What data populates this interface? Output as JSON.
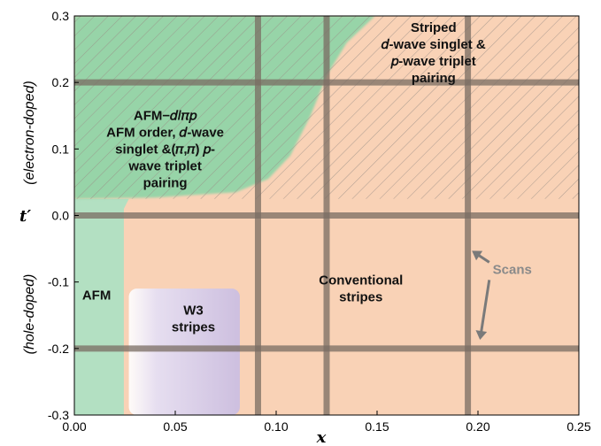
{
  "chart_data": {
    "type": "phase-diagram",
    "xlabel": "x",
    "ylabel_symbol": "t′",
    "ylabel_upper": "(electron-doped)",
    "ylabel_lower": "(hole-doped)",
    "xlim": [
      0.0,
      0.25
    ],
    "ylim": [
      -0.3,
      0.3
    ],
    "xticks": [
      0.0,
      0.05,
      0.1,
      0.15,
      0.2,
      0.25
    ],
    "xtick_labels": [
      "0.00",
      "0.05",
      "0.10",
      "0.15",
      "0.20",
      "0.25"
    ],
    "yticks": [
      -0.3,
      -0.2,
      -0.1,
      0.0,
      0.1,
      0.2,
      0.3
    ],
    "ytick_labels": [
      "-0.3",
      "-0.2",
      "-0.1",
      "0.0",
      "0.1",
      "0.2",
      "0.3"
    ],
    "scan_lines": {
      "x": [
        0.091,
        0.125,
        0.195
      ],
      "y": [
        -0.2,
        0.0,
        0.2
      ]
    },
    "regions": [
      {
        "id": "afm",
        "lines": [
          "AFM"
        ],
        "label_at": [
          0.011,
          -0.12
        ],
        "color": "#b3e0c2",
        "boundary": [
          [
            0.0,
            -0.3
          ],
          [
            0.0245,
            -0.3
          ],
          [
            0.0245,
            0.01
          ],
          [
            0.027,
            0.025
          ],
          [
            0.0,
            0.025
          ]
        ]
      },
      {
        "id": "afm-d-pi-p",
        "lines": [
          "AFM−𝑑/𝜋𝑝",
          "AFM order, 𝑑-wave",
          "singlet &(𝜋,𝜋) 𝑝-",
          "wave triplet",
          "pairing"
        ],
        "label_at": [
          0.045,
          0.1
        ],
        "color": "#97d4a8",
        "boundary": [
          [
            0.0,
            0.3
          ],
          [
            0.149,
            0.3
          ],
          [
            0.135,
            0.26
          ],
          [
            0.125,
            0.21
          ],
          [
            0.117,
            0.15
          ],
          [
            0.107,
            0.09
          ],
          [
            0.096,
            0.055
          ],
          [
            0.08,
            0.035
          ],
          [
            0.04,
            0.027
          ],
          [
            0.0,
            0.025
          ]
        ]
      },
      {
        "id": "striped",
        "lines": [
          "Striped",
          "𝑑-wave singlet &",
          "𝑝-wave triplet",
          "pairing"
        ],
        "label_at": [
          0.178,
          0.245
        ],
        "color": "#f9d2b6"
      },
      {
        "id": "conventional",
        "lines": [
          "Conventional",
          "stripes"
        ],
        "label_at": [
          0.142,
          -0.11
        ],
        "color": "#f9d2b6"
      },
      {
        "id": "w3",
        "lines": [
          "W3",
          "stripes"
        ],
        "label_at": [
          0.059,
          -0.155
        ],
        "color": "#cfc2df",
        "boundary": [
          [
            0.027,
            -0.3
          ],
          [
            0.082,
            -0.3
          ],
          [
            0.082,
            -0.11
          ],
          [
            0.027,
            -0.11
          ]
        ]
      }
    ],
    "hatched_region_ylim": [
      0.025,
      0.3
    ],
    "annotations": [
      {
        "text": "Scans",
        "at": [
          0.217,
          -0.081
        ],
        "arrows_to": [
          [
            0.197,
            -0.053
          ],
          [
            0.201,
            -0.187
          ]
        ]
      }
    ],
    "colors": {
      "background_fill": "#f9d2b6",
      "afm": "#b3e0c2",
      "afm_d_pi_p": "#97d4a8",
      "w3": "#cfc2df",
      "scan_line": "#7a6d63",
      "hatch": "#9a8f86",
      "scans_label": "#8a8a8a"
    },
    "grid": false,
    "legend": "none"
  }
}
